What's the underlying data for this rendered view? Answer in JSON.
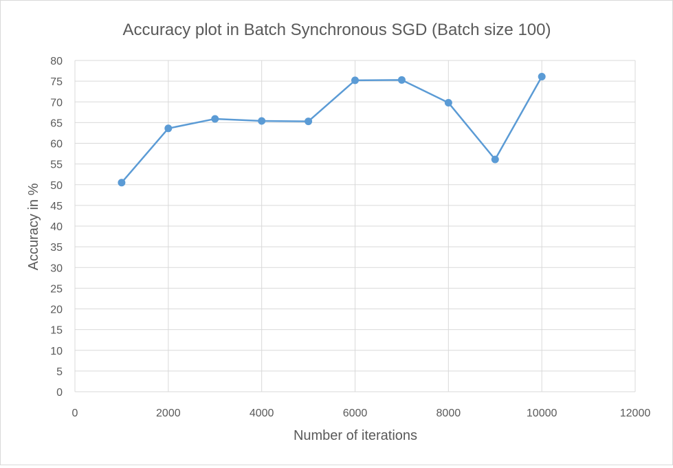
{
  "chart_data": {
    "type": "scatter",
    "title": "Accuracy plot in Batch Synchronous SGD (Batch size 100)",
    "xlabel": "Number of iterations",
    "ylabel": "Accuracy in %",
    "xlim": [
      0,
      12000
    ],
    "ylim": [
      0,
      80
    ],
    "x_ticks": [
      0,
      2000,
      4000,
      6000,
      8000,
      10000,
      12000
    ],
    "y_ticks": [
      0,
      5,
      10,
      15,
      20,
      25,
      30,
      35,
      40,
      45,
      50,
      55,
      60,
      65,
      70,
      75,
      80
    ],
    "grid": true,
    "legend": "none",
    "series": [
      {
        "color": "#5b9bd5",
        "points": [
          {
            "x": 1000,
            "y": 50.5
          },
          {
            "x": 2000,
            "y": 63.6
          },
          {
            "x": 3000,
            "y": 65.9
          },
          {
            "x": 4000,
            "y": 65.4
          },
          {
            "x": 5000,
            "y": 65.3
          },
          {
            "x": 6000,
            "y": 75.2
          },
          {
            "x": 7000,
            "y": 75.3
          },
          {
            "x": 8000,
            "y": 69.8
          },
          {
            "x": 9000,
            "y": 56.1
          },
          {
            "x": 10000,
            "y": 76.1
          }
        ]
      }
    ],
    "colors": {
      "gridline": "#d9d9d9",
      "text": "#595959"
    }
  }
}
